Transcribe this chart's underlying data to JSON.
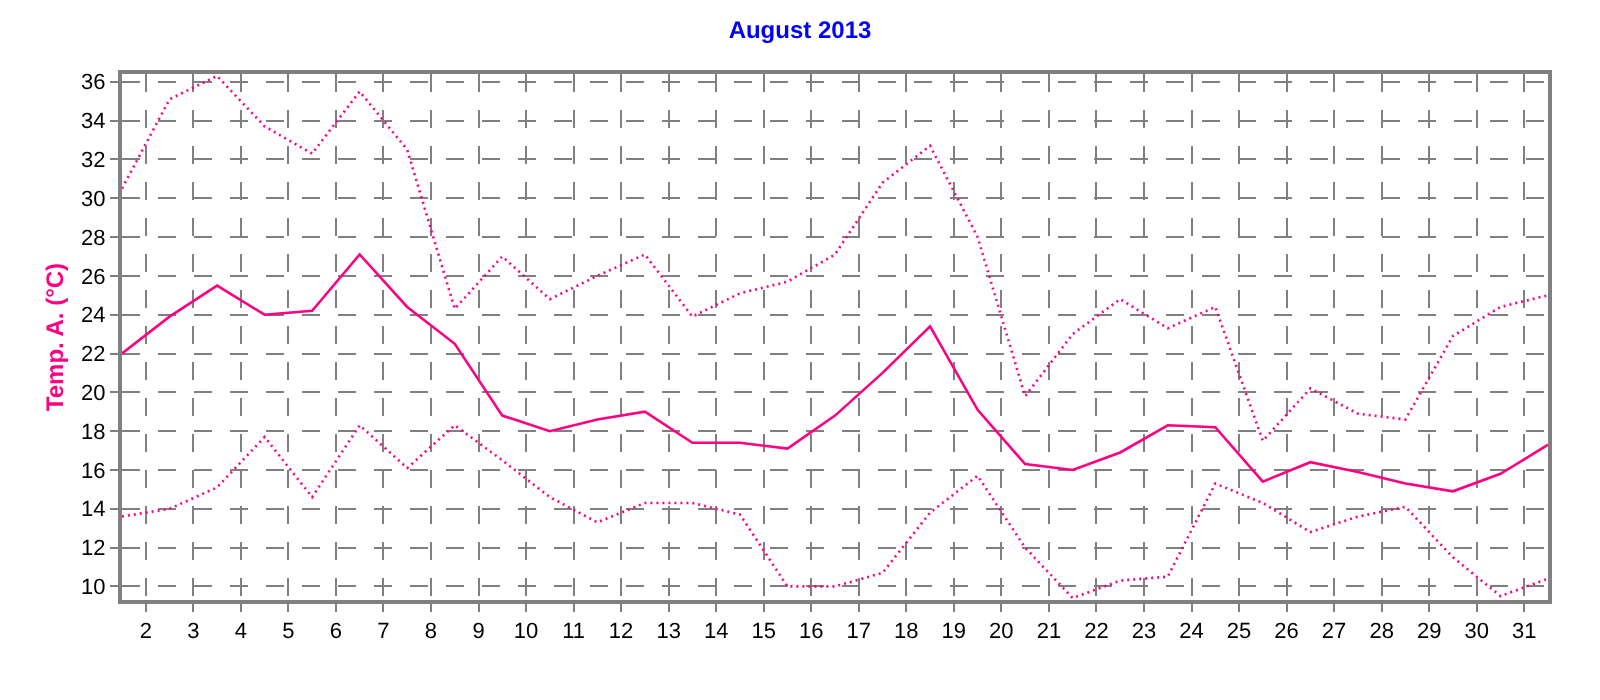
{
  "chart_data": {
    "type": "line",
    "title": "August 2013",
    "ylabel": "Temp. A. (°C)",
    "x": [
      1.5,
      2.5,
      3.5,
      4.5,
      5.5,
      6.5,
      7.5,
      8.5,
      9.5,
      10.5,
      11.5,
      12.5,
      13.5,
      14.5,
      15.5,
      16.5,
      17.5,
      18.5,
      19.5,
      20.5,
      21.5,
      22.5,
      23.5,
      24.5,
      25.5,
      26.5,
      27.5,
      28.5,
      29.5,
      30.5,
      31.5
    ],
    "xlim": [
      1.5,
      31.5
    ],
    "xticks": [
      2,
      3,
      4,
      5,
      6,
      7,
      8,
      9,
      10,
      11,
      12,
      13,
      14,
      15,
      16,
      17,
      18,
      19,
      20,
      21,
      22,
      23,
      24,
      25,
      26,
      27,
      28,
      29,
      30,
      31
    ],
    "ylim": [
      9.3,
      36.4
    ],
    "yticks": [
      10,
      12,
      14,
      16,
      18,
      20,
      22,
      24,
      26,
      28,
      30,
      32,
      34,
      36
    ],
    "grid": true,
    "marker": "none",
    "series": [
      {
        "color": "#ff0080",
        "line_style": "dotted",
        "values": [
          30.5,
          35.1,
          36.3,
          33.7,
          32.3,
          35.5,
          32.5,
          24.3,
          27.0,
          24.8,
          26.0,
          27.1,
          23.9,
          25.1,
          25.7,
          27.1,
          30.8,
          32.7,
          28.0,
          19.8,
          23.0,
          24.8,
          23.3,
          24.4,
          17.5,
          20.2,
          18.9,
          18.6,
          22.9,
          24.4,
          25.0
        ]
      },
      {
        "color": "#ff0080",
        "line_style": "solid",
        "values": [
          22.0,
          23.9,
          25.5,
          24.0,
          24.2,
          27.1,
          24.4,
          22.5,
          18.8,
          18.0,
          18.6,
          19.0,
          17.4,
          17.4,
          17.1,
          18.8,
          21.0,
          23.4,
          19.1,
          16.3,
          16.0,
          16.9,
          18.3,
          18.2,
          15.4,
          16.4,
          15.9,
          15.3,
          14.9,
          15.8,
          17.3
        ]
      },
      {
        "color": "#ff0080",
        "line_style": "dotted",
        "values": [
          13.6,
          14.0,
          15.1,
          17.7,
          14.6,
          18.3,
          16.1,
          18.3,
          16.5,
          14.6,
          13.3,
          14.3,
          14.3,
          13.7,
          10.0,
          10.0,
          10.7,
          13.8,
          15.7,
          12.0,
          9.4,
          10.3,
          10.5,
          15.3,
          14.3,
          12.8,
          13.6,
          14.1,
          11.5,
          9.5,
          10.4
        ]
      }
    ]
  }
}
